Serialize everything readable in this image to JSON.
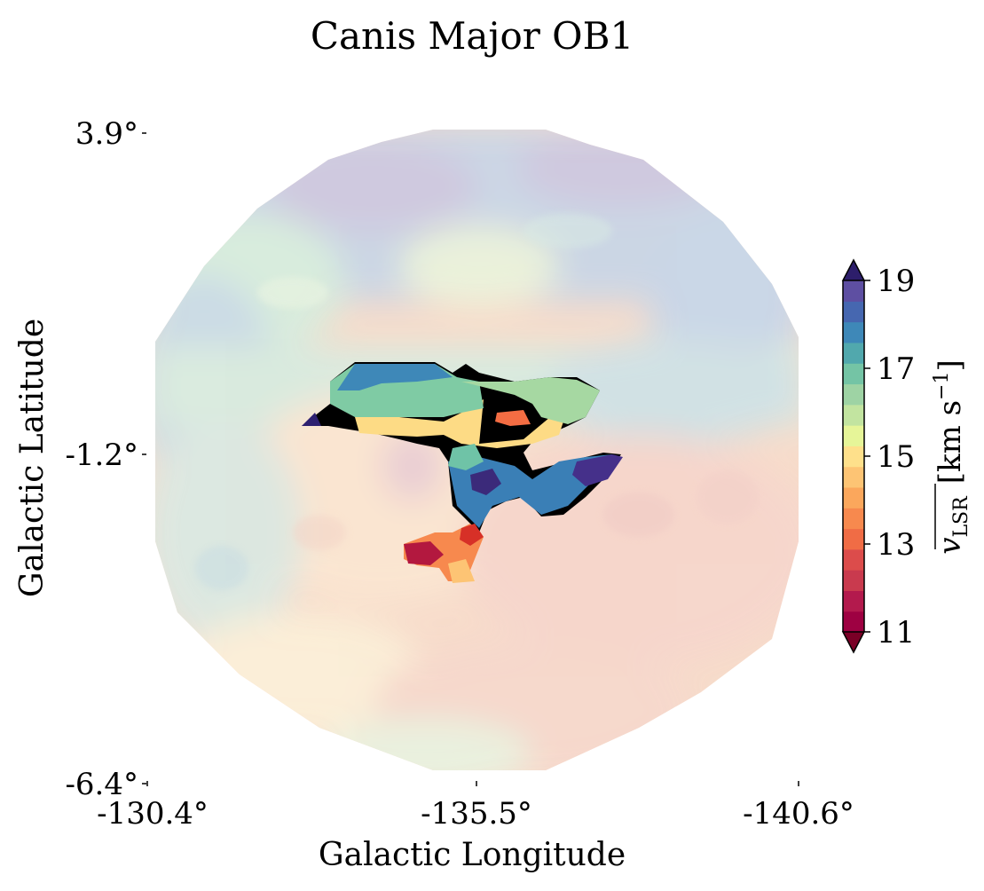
{
  "chart_data": {
    "type": "heatmap",
    "title": "Canis Major OB1",
    "xlabel": "Galactic Longitude",
    "ylabel": "Galactic Latitude",
    "x_ticks": [
      "-130.4°",
      "-135.5°",
      "-140.6°"
    ],
    "y_ticks": [
      "3.9°",
      "-1.2°",
      "-6.4°"
    ],
    "xlim": [
      -130.4,
      -140.6
    ],
    "ylim": [
      -6.4,
      3.9
    ],
    "colorbar": {
      "label": "v̄_LSR [km s⁻¹]",
      "label_main": "v",
      "label_sub": "LSR",
      "label_units": "[km s",
      "label_exp": "−1",
      "label_close": "]",
      "min": 11,
      "max": 19,
      "ticks": [
        "11",
        "13",
        "15",
        "17",
        "19"
      ],
      "extend": "both",
      "colormap": "Spectral",
      "levels": 16,
      "colors": [
        "#9e0142",
        "#b31a4d",
        "#c93a4e",
        "#dc4c4b",
        "#f06c45",
        "#f7894e",
        "#fba75c",
        "#fdc474",
        "#fee08b",
        "#e6f598",
        "#c2e4a0",
        "#9ed3a4",
        "#74c4a5",
        "#51a8ad",
        "#3e88b8",
        "#4667b0",
        "#5e4fa2"
      ]
    },
    "background_field": {
      "description_free": true,
      "alpha": 0.3,
      "region": "circle"
    }
  }
}
